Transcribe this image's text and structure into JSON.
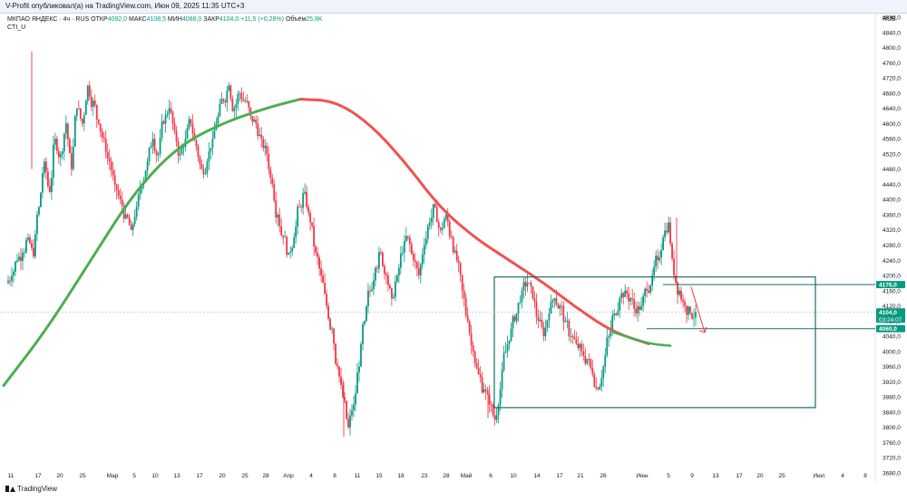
{
  "header": {
    "publish_line": "V-Profit опубликовал(а) на TradingView.com, Июн 09, 2025 11:35 UTC+3"
  },
  "legend": {
    "symbol": "МКПАО ЯНДЕКС · 4ч · RUS",
    "open_label": "ОТКР",
    "open_value": "4092,0",
    "high_label": "МАКС",
    "high_value": "4108,5",
    "low_label": "МИН",
    "low_value": "4088,0",
    "close_label": "ЗАКР",
    "close_value": "4104,0",
    "change": "+11,5 (+0,28%)",
    "volume_label": "Объём",
    "volume_value": "25,8K",
    "indicator": "CTI_U"
  },
  "currency": "RUB",
  "branding": "TradingView",
  "colors": {
    "up": "#089981",
    "down": "#f23645",
    "curve_up": "#4caf50",
    "curve_down": "#f05350",
    "box": "#1b6e63",
    "axis_text": "#131722",
    "price_tag": "#089981"
  },
  "chart_data": {
    "type": "candlestick",
    "timeframe": "4h",
    "ylim": [
      3680,
      4880
    ],
    "y_ticks": [
      "4880,0",
      "4840,0",
      "4800,0",
      "4760,0",
      "4720,0",
      "4680,0",
      "4640,0",
      "4600,0",
      "4560,0",
      "4520,0",
      "4480,0",
      "4440,0",
      "4400,0",
      "4360,0",
      "4320,0",
      "4280,0",
      "4240,0",
      "4200,0",
      "4160,0",
      "4120,0",
      "4080,0",
      "4040,0",
      "4000,0",
      "3960,0",
      "3920,0",
      "3880,0",
      "3840,0",
      "3800,0",
      "3760,0",
      "3720,0",
      "3680,0"
    ],
    "x_ticks": [
      "11",
      "17",
      "20",
      "25",
      "Мар",
      "5",
      "10",
      "13",
      "17",
      "20",
      "25",
      "28",
      "Апр",
      "4",
      "8",
      "11",
      "15",
      "18",
      "23",
      "28",
      "Май",
      "6",
      "10",
      "14",
      "17",
      "21",
      "26",
      "Июн",
      "5",
      "9",
      "13",
      "17",
      "20",
      "25",
      "Июл",
      "4",
      "8"
    ],
    "x_tick_positions": [
      12,
      42,
      66,
      91,
      124,
      148,
      171,
      195,
      220,
      245,
      270,
      293,
      318,
      343,
      369,
      394,
      418,
      442,
      468,
      492,
      514,
      541,
      566,
      592,
      617,
      640,
      665,
      708,
      737,
      763,
      789,
      815,
      838,
      862,
      903,
      929,
      954
    ],
    "close_series": [
      4200,
      4240,
      4260,
      4300,
      4250,
      4380,
      4500,
      4420,
      4560,
      4520,
      4600,
      4480,
      4640,
      4600,
      4700,
      4660,
      4600,
      4560,
      4500,
      4440,
      4400,
      4360,
      4320,
      4380,
      4440,
      4500,
      4560,
      4520,
      4600,
      4640,
      4580,
      4520,
      4560,
      4600,
      4540,
      4480,
      4500,
      4560,
      4620,
      4660,
      4700,
      4640,
      4680,
      4660,
      4620,
      4600,
      4560,
      4520,
      4440,
      4360,
      4300,
      4260,
      4300,
      4380,
      4420,
      4340,
      4260,
      4200,
      4120,
      4060,
      3960,
      3880,
      3800,
      3860,
      3960,
      4080,
      4160,
      4220,
      4260,
      4200,
      4140,
      4200,
      4260,
      4300,
      4240,
      4200,
      4280,
      4340,
      4380,
      4320,
      4360,
      4300,
      4240,
      4160,
      4080,
      4000,
      3940,
      3900,
      3860,
      3820,
      3900,
      4000,
      4060,
      4100,
      4160,
      4180,
      4140,
      4080,
      4040,
      4100,
      4140,
      4120,
      4080,
      4040,
      4020,
      4000,
      3980,
      3940,
      3900,
      3960,
      4040,
      4100,
      4140,
      4160,
      4140,
      4100,
      4120,
      4160,
      4200,
      4240,
      4300,
      4340,
      4200,
      4160,
      4120,
      4100,
      4104
    ],
    "series": [
      {
        "name": "CTI_U",
        "note": "oscillating trend curve",
        "points_x_pct": [
          0,
          5,
          10,
          15,
          20,
          25,
          30,
          34,
          38,
          42,
          46,
          50,
          54,
          58,
          62,
          66,
          70,
          74,
          76.5
        ],
        "values": [
          3910,
          4060,
          4240,
          4420,
          4540,
          4600,
          4640,
          4664,
          4660,
          4600,
          4500,
          4380,
          4300,
          4240,
          4180,
          4110,
          4050,
          4020,
          4015
        ]
      }
    ],
    "annotations": {
      "rectangle": {
        "from_label": "~6 May",
        "to_label": "~25 Jun",
        "top": 4196,
        "bottom": 3852
      },
      "level_high": {
        "price": 4176,
        "label": "4176,0"
      },
      "level_low": {
        "price": 4060,
        "label": "4060,0"
      },
      "current_price": {
        "price": 4104,
        "label": "4104,0",
        "timer": "03:24:07"
      },
      "arrow": {
        "description": "red projection arrow pointing down"
      }
    }
  }
}
